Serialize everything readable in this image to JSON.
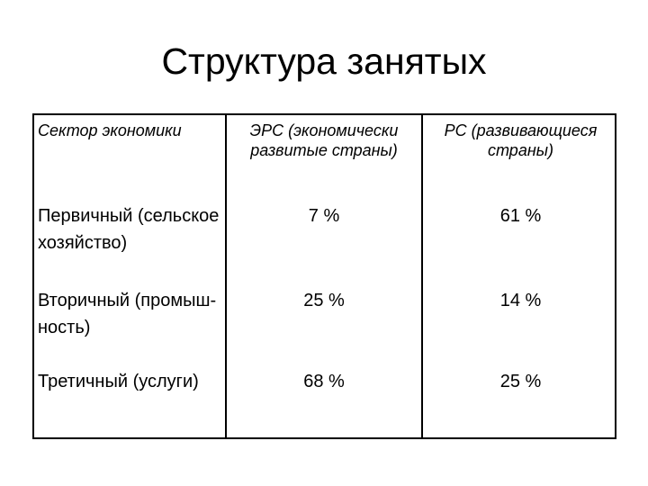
{
  "slide": {
    "title": "Структура занятых"
  },
  "table": {
    "headers": {
      "sector": "Сектор экономики",
      "ers": "ЭРС (экономически развитые страны)",
      "rs": "РС (развивающиеся страны)"
    },
    "rows": [
      {
        "sector": "Первичный (сельское хозяйство)",
        "ers": "7 %",
        "rs": "61 %"
      },
      {
        "sector": "Вторичный (промыш-ность)",
        "ers": "25 %",
        "rs": "14 %"
      },
      {
        "sector": "Третичный (услуги)",
        "ers": "68 %",
        "rs": "25 %"
      }
    ]
  }
}
